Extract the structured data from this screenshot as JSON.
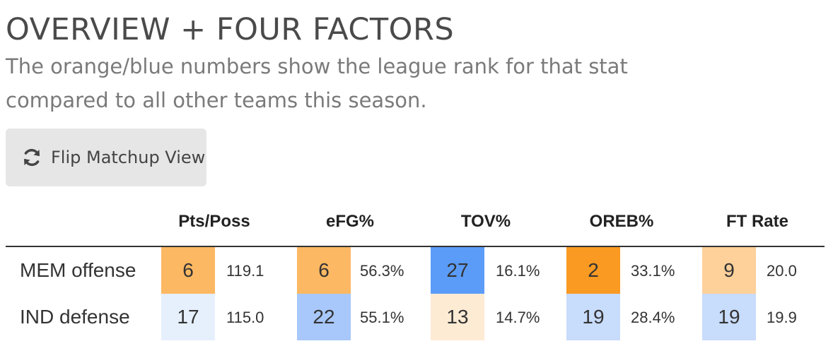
{
  "title": "OVERVIEW + FOUR FACTORS",
  "subtitle": "The orange/blue numbers show the league rank for that stat compared to all other teams this season.",
  "flip_button": {
    "label": "Flip Matchup View",
    "icon": "refresh-icon"
  },
  "table": {
    "columns": [
      "Pts/Poss",
      "eFG%",
      "TOV%",
      "OREB%",
      "FT Rate"
    ],
    "rows": [
      {
        "label": "MEM offense",
        "cells": [
          {
            "rank": "6",
            "value": "119.1",
            "color": "#fdb863"
          },
          {
            "rank": "6",
            "value": "56.3%",
            "color": "#fdb863"
          },
          {
            "rank": "27",
            "value": "16.1%",
            "color": "#5b9cf8"
          },
          {
            "rank": "2",
            "value": "33.1%",
            "color": "#fa9a22"
          },
          {
            "rank": "9",
            "value": "20.0",
            "color": "#fed09a"
          }
        ]
      },
      {
        "label": "IND defense",
        "cells": [
          {
            "rank": "17",
            "value": "115.0",
            "color": "#e6f0fd"
          },
          {
            "rank": "22",
            "value": "55.1%",
            "color": "#a8c8fb"
          },
          {
            "rank": "13",
            "value": "14.7%",
            "color": "#feebd4"
          },
          {
            "rank": "19",
            "value": "28.4%",
            "color": "#c8dcfb"
          },
          {
            "rank": "19",
            "value": "19.9",
            "color": "#c8dcfb"
          }
        ]
      }
    ]
  }
}
